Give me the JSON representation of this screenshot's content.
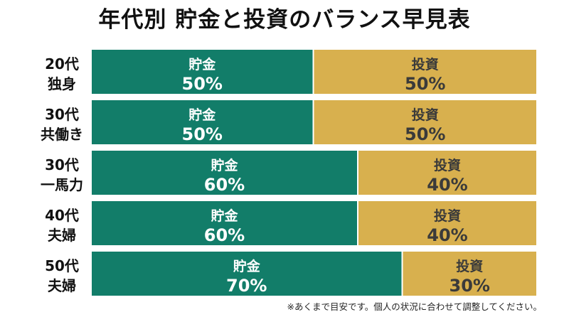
{
  "title": "年代別 貯金と投資のバランス早見表",
  "footnote": "※あくまで目安です。個人の状況に合わせて調整してください。",
  "colors": {
    "savings": "#127d69",
    "investment": "#d8b04e",
    "savings_text": "#ffffff",
    "investment_text": "#3a3a3a"
  },
  "chart_data": {
    "type": "bar",
    "orientation": "horizontal",
    "stacked": true,
    "unit": "%",
    "xlim": [
      0,
      100
    ],
    "categories": [
      [
        "20代",
        "独身"
      ],
      [
        "30代",
        "共働き"
      ],
      [
        "30代",
        "一馬力"
      ],
      [
        "40代",
        "夫婦"
      ],
      [
        "50代",
        "夫婦"
      ]
    ],
    "series": [
      {
        "name": "貯金",
        "values": [
          50,
          50,
          60,
          60,
          70
        ]
      },
      {
        "name": "投資",
        "values": [
          50,
          50,
          40,
          40,
          30
        ]
      }
    ]
  }
}
